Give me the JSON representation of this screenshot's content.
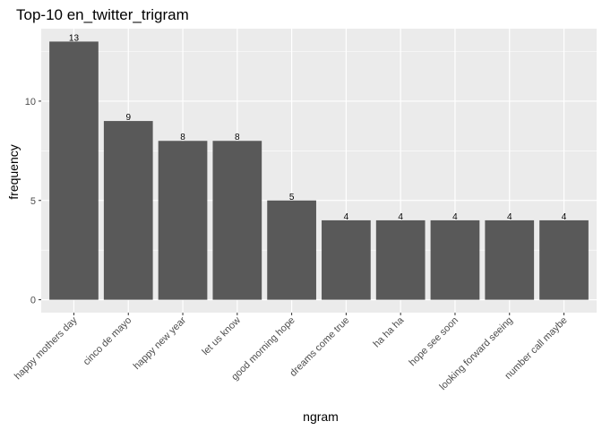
{
  "chart_data": {
    "type": "bar",
    "title": "Top-10 en_twitter_trigram",
    "xlabel": "ngram",
    "ylabel": "frequency",
    "categories": [
      "happy mothers day",
      "cinco de mayo",
      "happy new year",
      "let us know",
      "good morning hope",
      "dreams come true",
      "ha ha ha",
      "hope see soon",
      "looking forward seeing",
      "number call maybe"
    ],
    "values": [
      13,
      9,
      8,
      8,
      5,
      4,
      4,
      4,
      4,
      4
    ],
    "ylim": [
      -0.65,
      13.65
    ],
    "yticks": [
      0,
      5,
      10
    ],
    "grid": true,
    "colors": {
      "bar": "#595959",
      "panel": "#ebebeb",
      "grid": "#ffffff"
    }
  }
}
